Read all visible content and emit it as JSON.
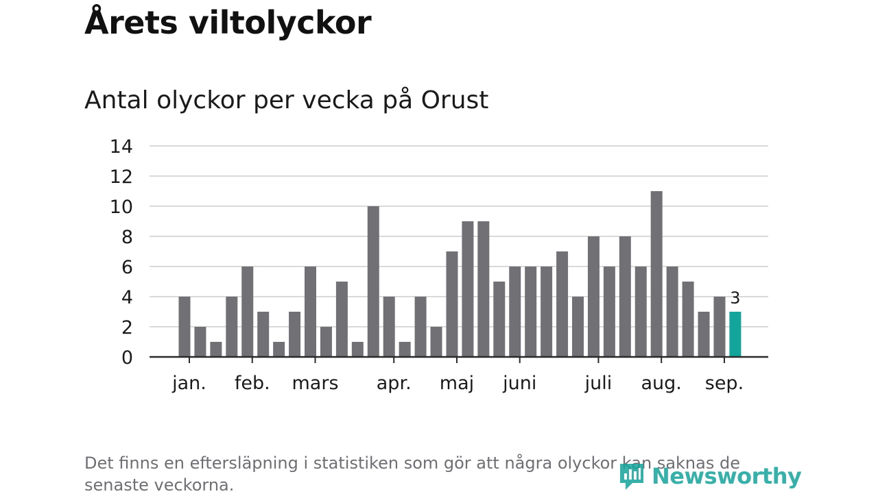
{
  "title": "Årets viltolyckor",
  "subtitle": "Antal olyckor per vecka på Orust",
  "footnote": "Det finns en eftersläpning i statistiken som gör att några olyckor kan saknas de senaste veckorna.",
  "brand": {
    "name": "Newsworthy",
    "icon": "newsworthy-logo-icon",
    "color": "#15a39c"
  },
  "colors": {
    "bar": "#717075",
    "highlight": "#13a59b",
    "grid": "#d9d9d9",
    "axis": "#2a2a2a"
  },
  "chart_data": {
    "type": "bar",
    "title": "Antal olyckor per vecka på Orust",
    "xlabel": "",
    "ylabel": "",
    "ylim": [
      0,
      14
    ],
    "yticks": [
      0,
      2,
      4,
      6,
      8,
      10,
      12,
      14
    ],
    "grid": true,
    "values": [
      4,
      2,
      1,
      4,
      6,
      3,
      1,
      3,
      6,
      2,
      5,
      1,
      10,
      4,
      1,
      4,
      2,
      7,
      9,
      9,
      5,
      6,
      6,
      6,
      7,
      4,
      8,
      6,
      8,
      6,
      11,
      6,
      5,
      3,
      4,
      3
    ],
    "highlight_index": 35,
    "highlight_label": "3",
    "month_labels": [
      {
        "label": "jan.",
        "week": 1
      },
      {
        "label": "feb.",
        "week": 5
      },
      {
        "label": "mars",
        "week": 9
      },
      {
        "label": "apr.",
        "week": 14
      },
      {
        "label": "maj",
        "week": 18
      },
      {
        "label": "juni",
        "week": 22
      },
      {
        "label": "juli",
        "week": 27
      },
      {
        "label": "aug.",
        "week": 31
      },
      {
        "label": "sep.",
        "week": 35
      }
    ]
  }
}
